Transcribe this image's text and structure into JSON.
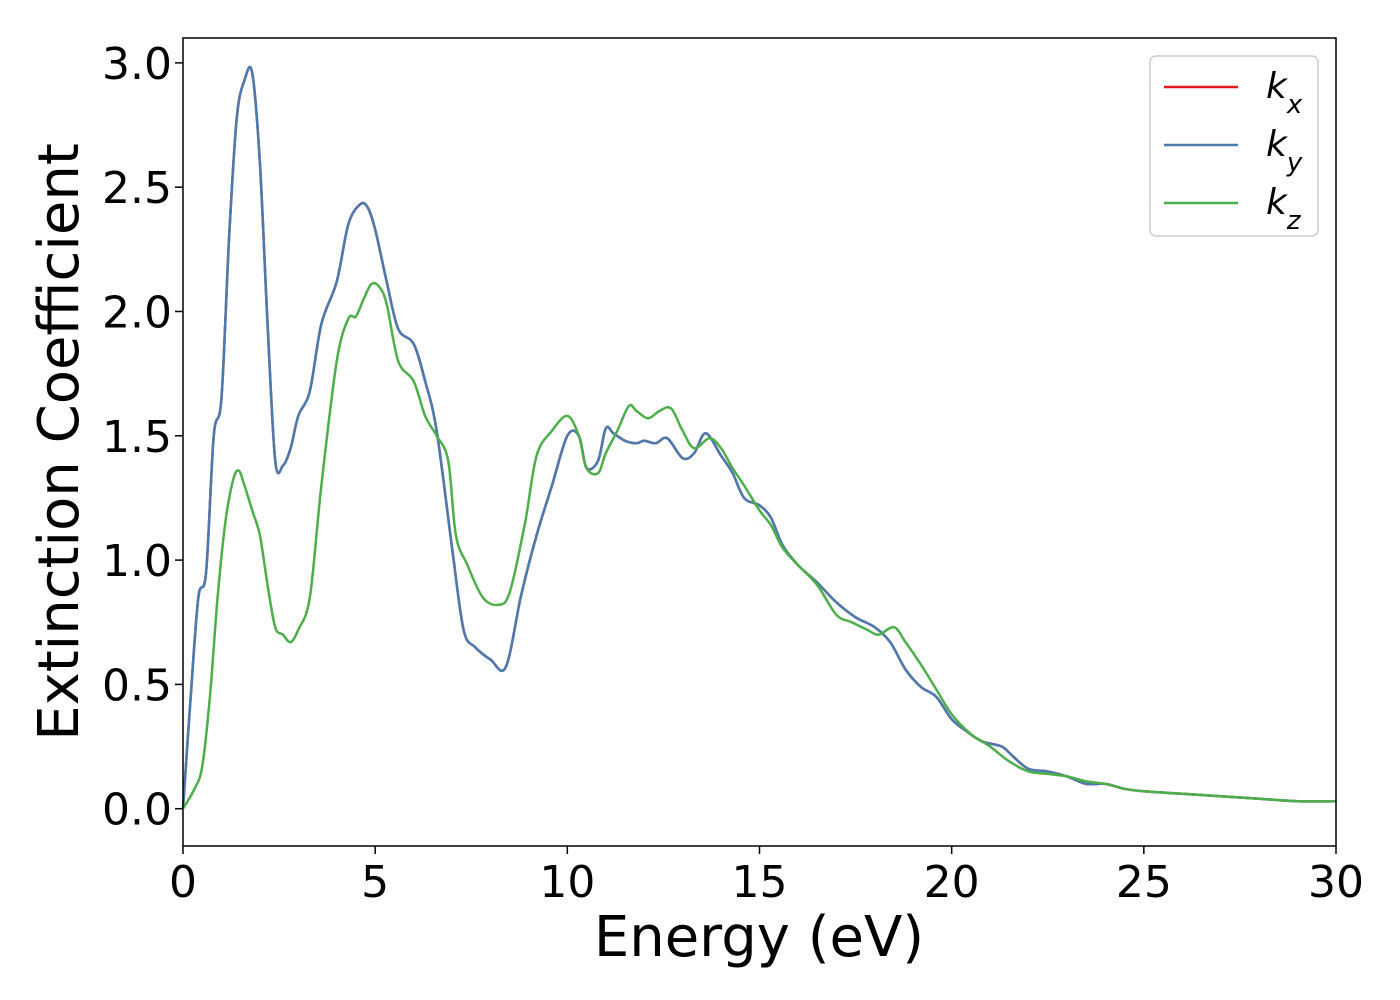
{
  "chart_data": {
    "type": "line",
    "title": "",
    "xlabel": "Energy (eV)",
    "ylabel": "Extinction Coefficient",
    "xlim": [
      0,
      30
    ],
    "ylim": [
      -0.15,
      3.1
    ],
    "xticks": [
      0,
      5,
      10,
      15,
      20,
      25,
      30
    ],
    "xtick_labels": [
      "0",
      "5",
      "10",
      "15",
      "20",
      "25",
      "30"
    ],
    "yticks": [
      0.0,
      0.5,
      1.0,
      1.5,
      2.0,
      2.5,
      3.0
    ],
    "ytick_labels": [
      "0.0",
      "0.5",
      "1.0",
      "1.5",
      "2.0",
      "2.5",
      "3.0"
    ],
    "grid": false,
    "legend_position": "top-right",
    "series": [
      {
        "name_base": "k",
        "name_sub": "x",
        "color": "#e41a1c",
        "x": [
          0,
          0.2,
          0.4,
          0.6,
          0.8,
          1.0,
          1.2,
          1.4,
          1.6,
          1.8,
          2.0,
          2.2,
          2.4,
          2.6,
          2.8,
          3.0,
          3.3,
          3.6,
          4.0,
          4.3,
          4.6,
          4.8,
          5.0,
          5.3,
          5.6,
          6.0,
          6.3,
          6.6,
          7.0,
          7.3,
          7.6,
          8.0,
          8.4,
          8.8,
          9.2,
          9.6,
          10.0,
          10.3,
          10.5,
          10.8,
          11.0,
          11.2,
          11.5,
          11.8,
          12.0,
          12.3,
          12.6,
          13.0,
          13.3,
          13.6,
          14.0,
          14.3,
          14.6,
          15.0,
          15.3,
          15.6,
          16.0,
          16.5,
          17.0,
          17.5,
          18.0,
          18.4,
          18.8,
          19.2,
          19.6,
          20.0,
          20.4,
          20.8,
          21.3,
          21.6,
          22.0,
          22.5,
          23.0,
          23.5,
          24.0,
          24.5,
          25.0,
          26.0,
          27.0,
          28.0,
          29.0,
          30.0
        ],
        "values": [
          0.0,
          0.45,
          0.85,
          0.95,
          1.5,
          1.65,
          2.3,
          2.78,
          2.93,
          2.96,
          2.6,
          1.95,
          1.4,
          1.38,
          1.45,
          1.58,
          1.68,
          1.95,
          2.12,
          2.35,
          2.43,
          2.42,
          2.33,
          2.12,
          1.93,
          1.87,
          1.72,
          1.52,
          1.05,
          0.72,
          0.65,
          0.6,
          0.57,
          0.86,
          1.1,
          1.3,
          1.5,
          1.5,
          1.37,
          1.4,
          1.53,
          1.51,
          1.48,
          1.47,
          1.48,
          1.47,
          1.49,
          1.41,
          1.43,
          1.51,
          1.42,
          1.35,
          1.25,
          1.22,
          1.17,
          1.06,
          0.98,
          0.91,
          0.83,
          0.77,
          0.73,
          0.67,
          0.56,
          0.49,
          0.45,
          0.36,
          0.31,
          0.27,
          0.25,
          0.21,
          0.16,
          0.15,
          0.13,
          0.1,
          0.1,
          0.08,
          0.07,
          0.06,
          0.05,
          0.04,
          0.03,
          0.03
        ]
      },
      {
        "name_base": "k",
        "name_sub": "y",
        "color": "#4a7bb0",
        "x": [
          0,
          0.2,
          0.4,
          0.6,
          0.8,
          1.0,
          1.2,
          1.4,
          1.6,
          1.8,
          2.0,
          2.2,
          2.4,
          2.6,
          2.8,
          3.0,
          3.3,
          3.6,
          4.0,
          4.3,
          4.6,
          4.8,
          5.0,
          5.3,
          5.6,
          6.0,
          6.3,
          6.6,
          7.0,
          7.3,
          7.6,
          8.0,
          8.4,
          8.8,
          9.2,
          9.6,
          10.0,
          10.3,
          10.5,
          10.8,
          11.0,
          11.2,
          11.5,
          11.8,
          12.0,
          12.3,
          12.6,
          13.0,
          13.3,
          13.6,
          14.0,
          14.3,
          14.6,
          15.0,
          15.3,
          15.6,
          16.0,
          16.5,
          17.0,
          17.5,
          18.0,
          18.4,
          18.8,
          19.2,
          19.6,
          20.0,
          20.4,
          20.8,
          21.3,
          21.6,
          22.0,
          22.5,
          23.0,
          23.5,
          24.0,
          24.5,
          25.0,
          26.0,
          27.0,
          28.0,
          29.0,
          30.0
        ],
        "values": [
          0.0,
          0.45,
          0.85,
          0.95,
          1.5,
          1.65,
          2.3,
          2.78,
          2.93,
          2.96,
          2.6,
          1.95,
          1.4,
          1.38,
          1.45,
          1.58,
          1.68,
          1.95,
          2.12,
          2.35,
          2.43,
          2.42,
          2.33,
          2.12,
          1.93,
          1.87,
          1.72,
          1.52,
          1.05,
          0.72,
          0.65,
          0.6,
          0.57,
          0.86,
          1.1,
          1.3,
          1.5,
          1.5,
          1.37,
          1.4,
          1.53,
          1.51,
          1.48,
          1.47,
          1.48,
          1.47,
          1.49,
          1.41,
          1.43,
          1.51,
          1.42,
          1.35,
          1.25,
          1.22,
          1.17,
          1.06,
          0.98,
          0.91,
          0.83,
          0.77,
          0.73,
          0.67,
          0.56,
          0.49,
          0.45,
          0.36,
          0.31,
          0.27,
          0.25,
          0.21,
          0.16,
          0.15,
          0.13,
          0.1,
          0.1,
          0.08,
          0.07,
          0.06,
          0.05,
          0.04,
          0.03,
          0.03
        ]
      },
      {
        "name_base": "k",
        "name_sub": "z",
        "color": "#4daf4a",
        "x": [
          0,
          0.3,
          0.5,
          0.7,
          0.9,
          1.1,
          1.3,
          1.45,
          1.6,
          1.8,
          2.0,
          2.2,
          2.4,
          2.6,
          2.8,
          3.0,
          3.3,
          3.6,
          4.0,
          4.3,
          4.5,
          4.7,
          4.9,
          5.1,
          5.3,
          5.6,
          6.0,
          6.3,
          6.6,
          6.9,
          7.1,
          7.4,
          7.8,
          8.2,
          8.5,
          8.9,
          9.2,
          9.6,
          10.0,
          10.3,
          10.5,
          10.8,
          11.0,
          11.3,
          11.6,
          11.8,
          12.1,
          12.4,
          12.7,
          13.0,
          13.3,
          13.7,
          14.0,
          14.3,
          14.6,
          15.0,
          15.3,
          15.6,
          16.0,
          16.5,
          17.0,
          17.4,
          17.8,
          18.1,
          18.5,
          18.8,
          19.2,
          19.6,
          20.0,
          20.5,
          21.0,
          21.5,
          22.0,
          22.5,
          23.0,
          23.5,
          24.0,
          24.5,
          25.0,
          26.0,
          27.0,
          28.0,
          29.0,
          30.0
        ],
        "values": [
          0.0,
          0.08,
          0.17,
          0.45,
          0.85,
          1.15,
          1.32,
          1.36,
          1.3,
          1.2,
          1.1,
          0.9,
          0.73,
          0.7,
          0.67,
          0.72,
          0.85,
          1.3,
          1.8,
          1.97,
          1.98,
          2.05,
          2.11,
          2.1,
          2.03,
          1.8,
          1.72,
          1.58,
          1.5,
          1.4,
          1.1,
          0.98,
          0.85,
          0.82,
          0.87,
          1.15,
          1.42,
          1.52,
          1.58,
          1.5,
          1.37,
          1.35,
          1.43,
          1.52,
          1.62,
          1.6,
          1.57,
          1.6,
          1.61,
          1.52,
          1.45,
          1.49,
          1.45,
          1.37,
          1.3,
          1.2,
          1.14,
          1.05,
          0.98,
          0.9,
          0.78,
          0.75,
          0.72,
          0.7,
          0.73,
          0.67,
          0.58,
          0.48,
          0.38,
          0.3,
          0.25,
          0.19,
          0.15,
          0.14,
          0.13,
          0.11,
          0.1,
          0.08,
          0.07,
          0.06,
          0.05,
          0.04,
          0.03,
          0.03
        ]
      }
    ]
  }
}
